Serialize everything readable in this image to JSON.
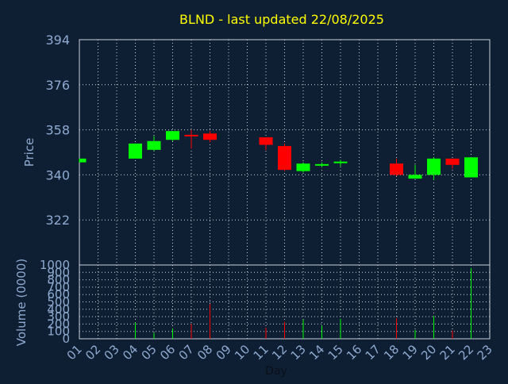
{
  "chart_data": {
    "type": "candlestick",
    "title": "BLND - last updated 22/08/2025",
    "title_color": "#ffff00",
    "background": "#0f1f33",
    "axis_text_color": "#8eaad0",
    "up_color": "#00ff00",
    "down_color": "#ff0000",
    "grid": true,
    "price": {
      "ylabel": "Price",
      "ylim": [
        304,
        394
      ],
      "yticks": [
        322,
        340,
        358,
        376,
        394
      ],
      "ytick_labels": [
        "322",
        "340",
        "358",
        "376",
        "394"
      ]
    },
    "volume": {
      "ylabel": "Volume (0000)",
      "ylim": [
        0,
        1000
      ],
      "yticks": [
        0,
        100,
        200,
        300,
        400,
        500,
        600,
        700,
        800,
        900,
        1000
      ],
      "ytick_labels": [
        "0",
        "100",
        "200",
        "300",
        "400",
        "500",
        "600",
        "700",
        "800",
        "900",
        "1000"
      ]
    },
    "xlabel": "Day",
    "x_labels": [
      "01",
      "02",
      "03",
      "04",
      "05",
      "06",
      "07",
      "08",
      "09",
      "10",
      "11",
      "12",
      "13",
      "14",
      "15",
      "16",
      "17",
      "18",
      "19",
      "20",
      "21",
      "22",
      "23"
    ],
    "candles": [
      {
        "day": "01",
        "open": 345.0,
        "high": 346.5,
        "low": 345.0,
        "close": 346.5,
        "volume": 0
      },
      {
        "day": "04",
        "open": 346.5,
        "high": 352.5,
        "low": 346.5,
        "close": 352.5,
        "volume": 220
      },
      {
        "day": "05",
        "open": 350.0,
        "high": 355.5,
        "low": 349.5,
        "close": 353.5,
        "volume": 80
      },
      {
        "day": "06",
        "open": 354.0,
        "high": 357.5,
        "low": 353.5,
        "close": 357.5,
        "volume": 140
      },
      {
        "day": "07",
        "open": 356.0,
        "high": 358.0,
        "low": 350.5,
        "close": 355.5,
        "volume": 200
      },
      {
        "day": "08",
        "open": 356.5,
        "high": 357.5,
        "low": 353.0,
        "close": 354.0,
        "volume": 470
      },
      {
        "day": "11",
        "open": 355.0,
        "high": 355.0,
        "low": 350.0,
        "close": 352.0,
        "volume": 150
      },
      {
        "day": "12",
        "open": 351.5,
        "high": 352.5,
        "low": 341.5,
        "close": 342.0,
        "volume": 230
      },
      {
        "day": "13",
        "open": 341.5,
        "high": 345.0,
        "low": 341.0,
        "close": 344.5,
        "volume": 260
      },
      {
        "day": "14",
        "open": 344.0,
        "high": 345.0,
        "low": 343.0,
        "close": 344.3,
        "volume": 180
      },
      {
        "day": "15",
        "open": 344.8,
        "high": 346.0,
        "low": 343.5,
        "close": 345.3,
        "volume": 270
      },
      {
        "day": "18",
        "open": 344.5,
        "high": 346.5,
        "low": 339.5,
        "close": 340.0,
        "volume": 280
      },
      {
        "day": "19",
        "open": 338.5,
        "high": 344.0,
        "low": 338.5,
        "close": 340.0,
        "volume": 120
      },
      {
        "day": "20",
        "open": 340.0,
        "high": 347.0,
        "low": 338.0,
        "close": 346.5,
        "volume": 310
      },
      {
        "day": "21",
        "open": 346.5,
        "high": 346.5,
        "low": 342.5,
        "close": 344.0,
        "volume": 110
      },
      {
        "day": "22",
        "open": 339.0,
        "high": 347.0,
        "low": 339.0,
        "close": 347.0,
        "volume": 960
      }
    ]
  }
}
